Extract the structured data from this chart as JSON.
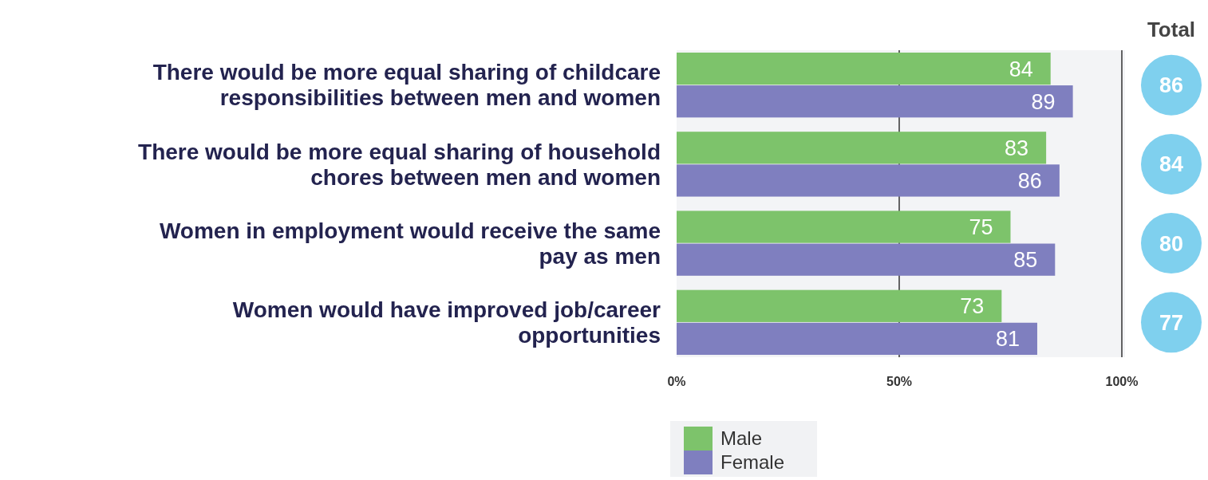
{
  "chart_data": {
    "type": "bar",
    "orientation": "horizontal",
    "categories": [
      "There would be more equal sharing of childcare responsibilities between men and women",
      "There would be more equal sharing of household chores between men and women",
      "Women in employment would receive the same pay as men",
      "Women would have improved job/career opportunities"
    ],
    "series": [
      {
        "name": "Male",
        "color": "#7dc36b",
        "values": [
          84,
          83,
          75,
          73
        ]
      },
      {
        "name": "Female",
        "color": "#7f7fbf",
        "values": [
          89,
          86,
          85,
          81
        ]
      }
    ],
    "xlim": [
      0,
      100
    ],
    "xticks": [
      {
        "value": 0,
        "label": "0%"
      },
      {
        "value": 50,
        "label": "50%"
      },
      {
        "value": 100,
        "label": "100%"
      }
    ],
    "grid": "x",
    "legend": "bottom",
    "data_labels": true,
    "annotations": [
      "Total",
      "86",
      "84",
      "80",
      "77"
    ]
  }
}
